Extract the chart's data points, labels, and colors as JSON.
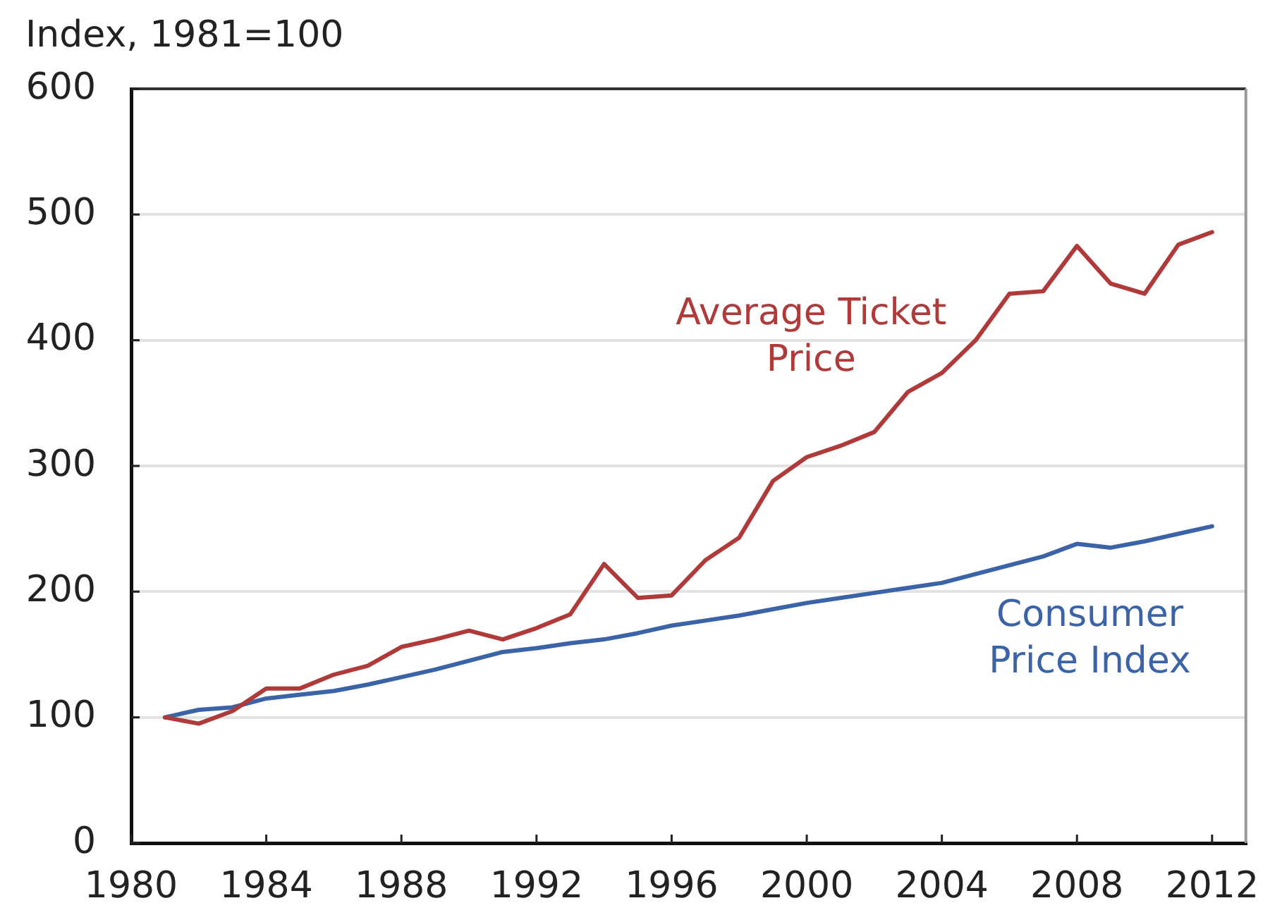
{
  "chart_data": {
    "type": "line",
    "ylabel": "Index, 1981=100",
    "x": [
      1981,
      1982,
      1983,
      1984,
      1985,
      1986,
      1987,
      1988,
      1989,
      1990,
      1991,
      1992,
      1993,
      1994,
      1995,
      1996,
      1997,
      1998,
      1999,
      2000,
      2001,
      2002,
      2003,
      2004,
      2005,
      2006,
      2007,
      2008,
      2009,
      2010,
      2011,
      2012
    ],
    "series": [
      {
        "name": "Average Ticket Price",
        "color": "#b03a3a",
        "values": [
          100,
          95,
          105,
          123,
          123,
          134,
          141,
          156,
          162,
          169,
          162,
          171,
          182,
          222,
          195,
          197,
          225,
          243,
          288,
          307,
          316,
          327,
          359,
          374,
          400,
          437,
          439,
          475,
          445,
          437,
          476,
          486
        ]
      },
      {
        "name": "Consumer Price Index",
        "color": "#3b63a8",
        "values": [
          100,
          106,
          108,
          115,
          118,
          121,
          126,
          132,
          138,
          145,
          152,
          155,
          159,
          162,
          167,
          173,
          177,
          181,
          186,
          191,
          195,
          199,
          203,
          207,
          214,
          221,
          228,
          238,
          235,
          240,
          246,
          252
        ]
      }
    ],
    "xlim": [
      1980,
      2013
    ],
    "xticks": [
      1980,
      1984,
      1988,
      1992,
      1996,
      2000,
      2004,
      2008,
      2012
    ],
    "ylim": [
      0,
      600
    ],
    "yticks": [
      0,
      100,
      200,
      300,
      400,
      500,
      600
    ],
    "grid": "y"
  }
}
